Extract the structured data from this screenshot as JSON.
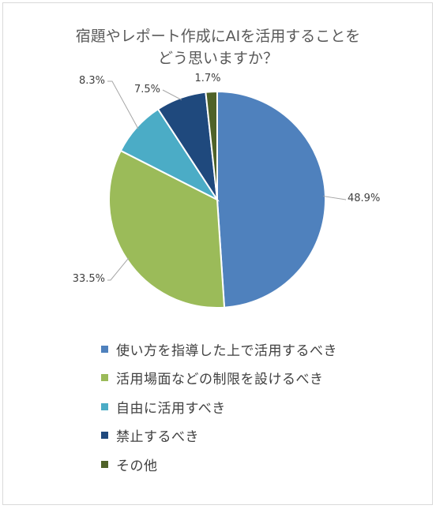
{
  "title": {
    "line1": "宿題やレポート作成にAIを活用することを",
    "line2": "どう思いますか？"
  },
  "chart_data": {
    "type": "pie",
    "title": "宿題やレポート作成にAIを活用することをどう思いますか？",
    "slices": [
      {
        "name": "使い方を指導した上で活用するべき",
        "value": 48.9,
        "label": "48.9%",
        "color": "#4f81bd"
      },
      {
        "name": "活用場面などの制限を設けるべき",
        "value": 33.5,
        "label": "33.5%",
        "color": "#9bbb59"
      },
      {
        "name": "自由に活用すべき",
        "value": 8.3,
        "label": "8.3%",
        "color": "#4bacc6"
      },
      {
        "name": "禁止するべき",
        "value": 7.5,
        "label": "7.5%",
        "color": "#1f497d"
      },
      {
        "name": "その他",
        "value": 1.7,
        "label": "1.7%",
        "color": "#4f6228"
      }
    ],
    "start_angle": "12 o'clock",
    "direction": "clockwise",
    "legend_position": "bottom"
  }
}
